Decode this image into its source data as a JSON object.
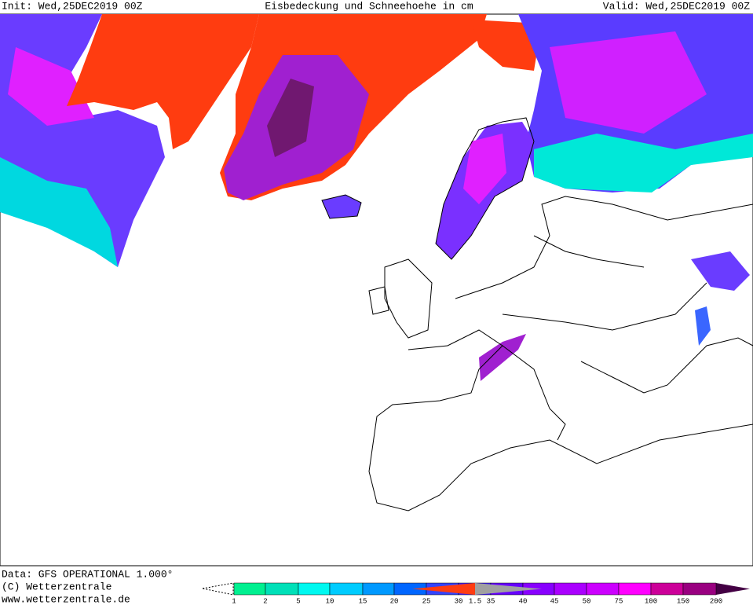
{
  "header": {
    "init": "Init: Wed,25DEC2019 00Z",
    "title": "Eisbedeckung und Schneehoehe in cm",
    "valid": "Valid: Wed,25DEC2019 00Z"
  },
  "footer": {
    "data": "Data: GFS OPERATIONAL 1.000°",
    "copyright": "(C) Wetterzentrale",
    "url": "www.wetterzentrale.de"
  },
  "legend": {
    "labels": [
      "1",
      "2",
      "5",
      "10",
      "15",
      "20",
      "25",
      "30",
      "1.5",
      "35",
      "40",
      "45",
      "50",
      "75",
      "100",
      "150",
      "200"
    ]
  }
}
